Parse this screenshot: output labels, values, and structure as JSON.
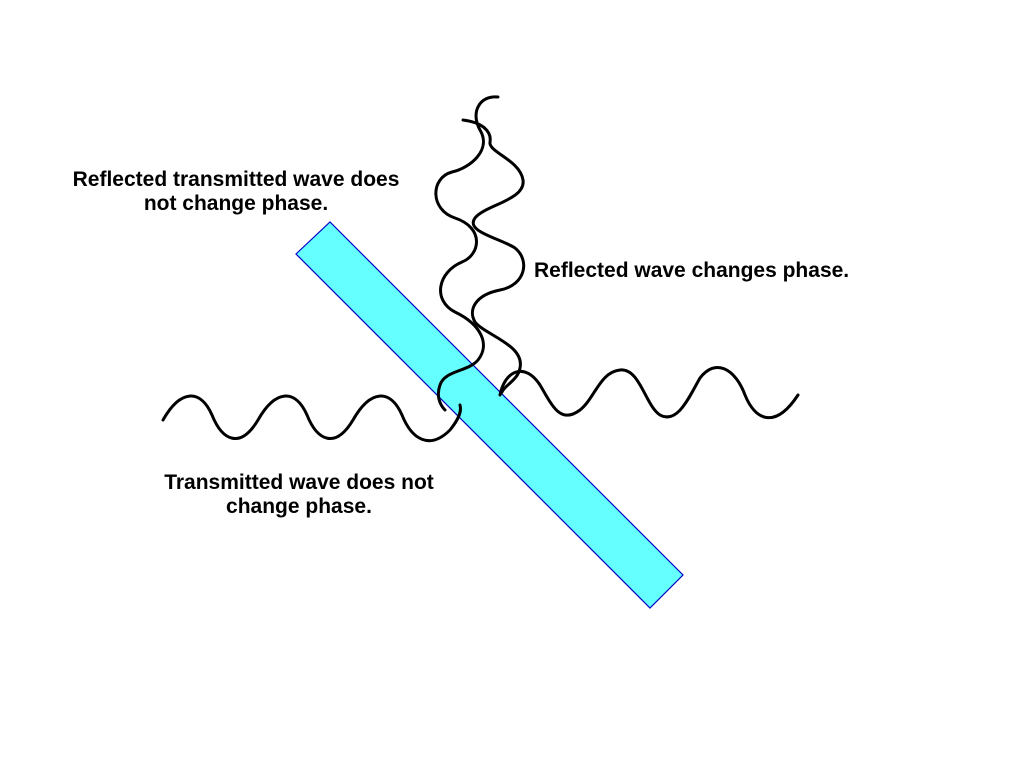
{
  "labels": {
    "reflected_transmitted_line1": "Reflected transmitted wave does",
    "reflected_transmitted_line2": "not change phase.",
    "reflected": "Reflected wave changes phase.",
    "transmitted_line1": "Transmitted wave does not",
    "transmitted_line2": "change phase."
  },
  "colors": {
    "slab_fill": "#66ffff",
    "slab_stroke": "#0000cc",
    "wave_stroke": "#000000",
    "text": "#000000",
    "background": "#ffffff"
  }
}
